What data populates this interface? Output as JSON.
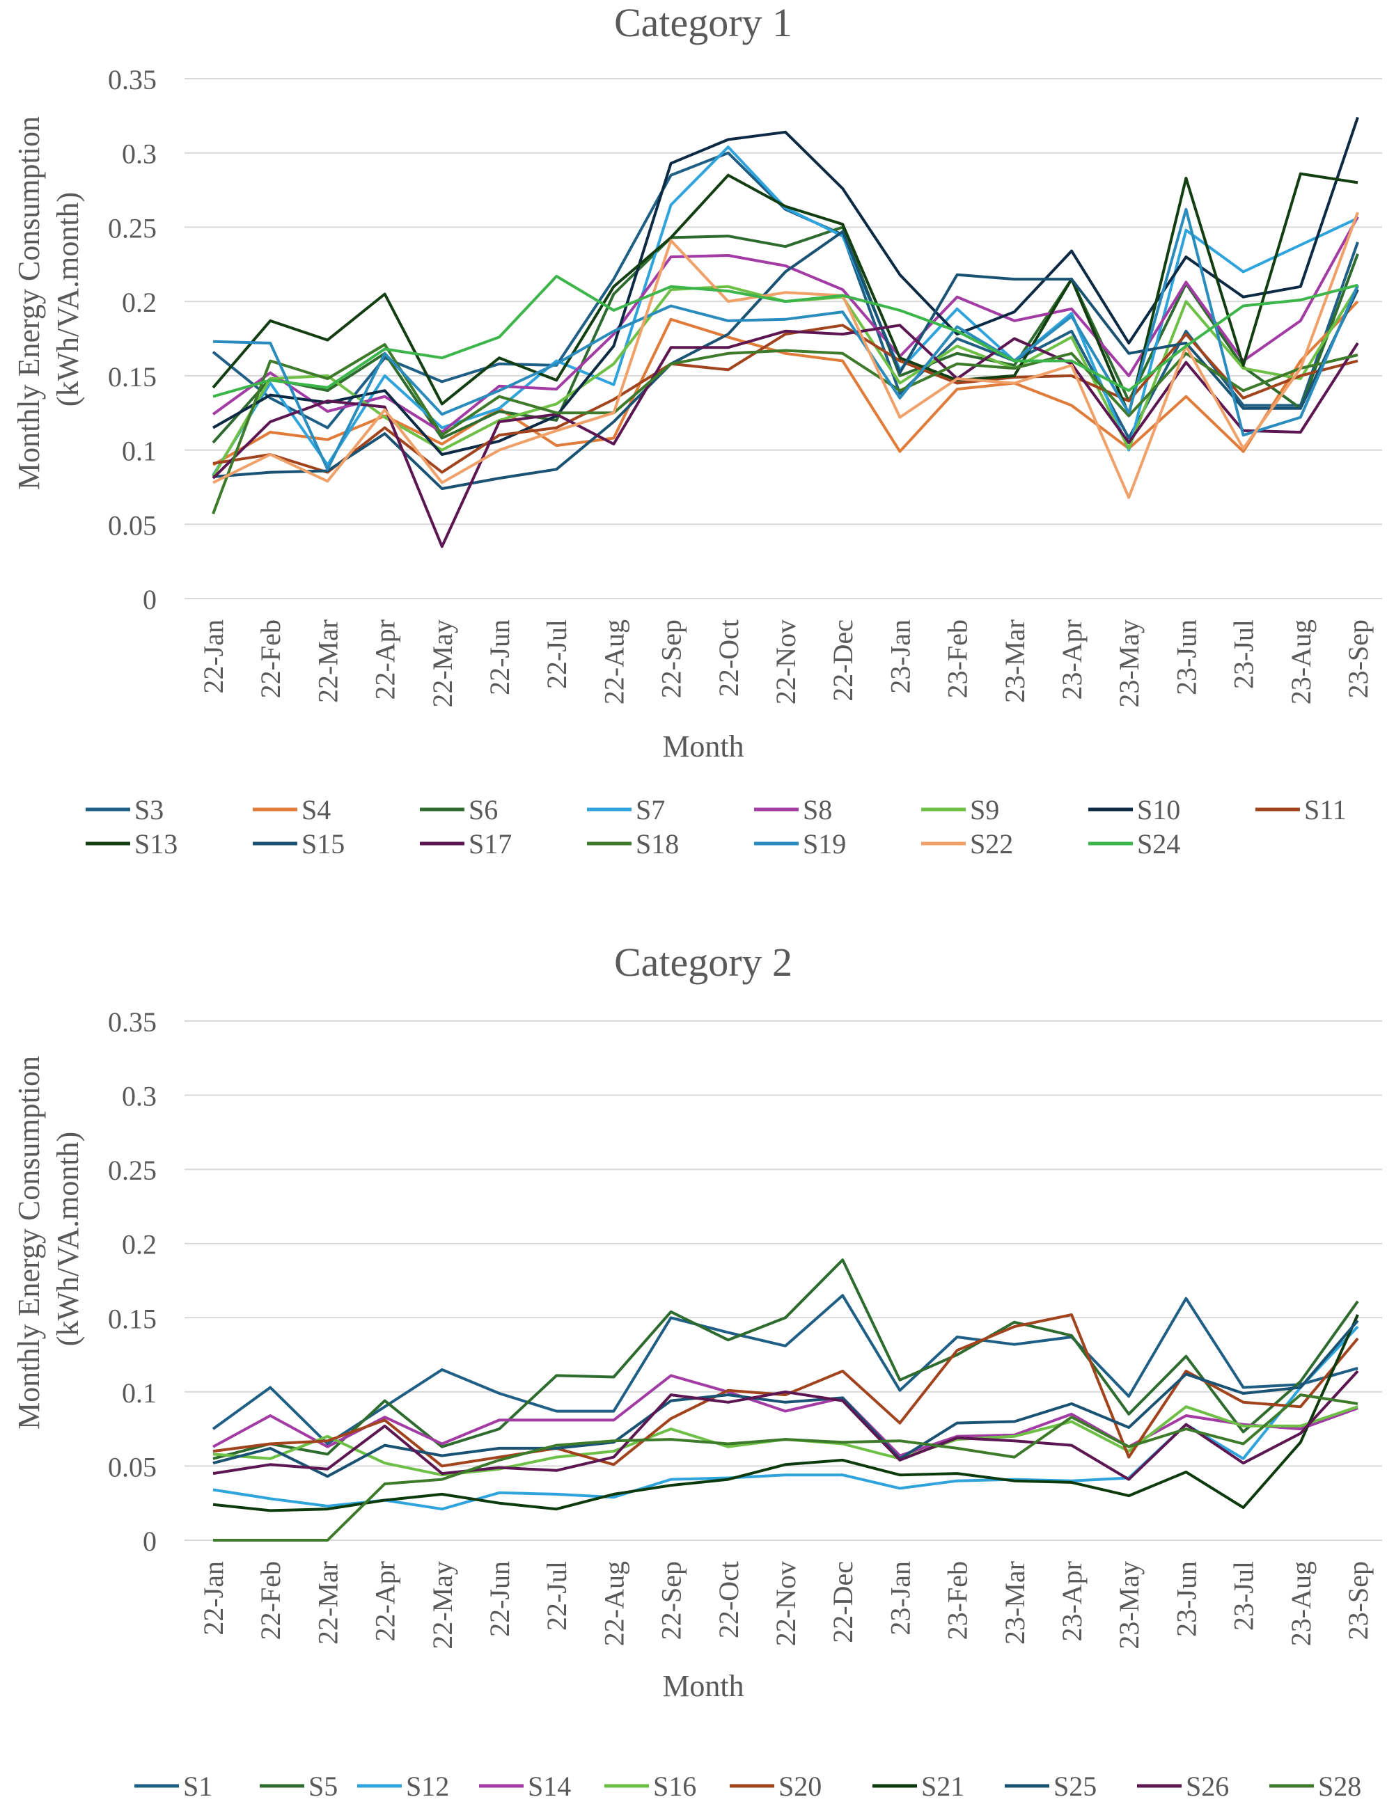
{
  "chart_data": [
    {
      "type": "line",
      "title": "Category 1",
      "xlabel": "Month",
      "ylabel": "Monthly Energy Consumption (kWh/VA.month)",
      "ylabel_lines": [
        "Monthly Energy Consumption",
        "(kWh/VA.month)"
      ],
      "ylim": [
        0,
        0.35
      ],
      "yticks": [
        0,
        0.05,
        0.1,
        0.15,
        0.2,
        0.25,
        0.3,
        0.35
      ],
      "ytick_labels": [
        "0",
        "0.05",
        "0.1",
        "0.15",
        "0.2",
        "0.25",
        "0.3",
        "0.35"
      ],
      "grid": true,
      "legend_position": "bottom",
      "categories": [
        "22-Jan",
        "22-Feb",
        "22-Mar",
        "22-Apr",
        "22-May",
        "22-Jun",
        "22-Jul",
        "22-Aug",
        "22-Sep",
        "22-Oct",
        "22-Nov",
        "22-Dec",
        "23-Jan",
        "23-Feb",
        "23-Mar",
        "23-Apr",
        "23-May",
        "23-Jun",
        "23-Jul",
        "23-Aug",
        "23-Sep"
      ],
      "series": [
        {
          "name": "S3",
          "color": "#1f5f86",
          "values": [
            0.166,
            0.135,
            0.115,
            0.162,
            0.146,
            0.158,
            0.157,
            0.215,
            0.285,
            0.3,
            0.262,
            0.245,
            0.138,
            0.175,
            0.16,
            0.18,
            0.108,
            0.18,
            0.13,
            0.13,
            0.24
          ]
        },
        {
          "name": "S4",
          "color": "#e07b39",
          "values": [
            0.09,
            0.112,
            0.107,
            0.123,
            0.104,
            0.128,
            0.103,
            0.108,
            0.188,
            0.176,
            0.165,
            0.16,
            0.099,
            0.141,
            0.145,
            0.13,
            0.101,
            0.136,
            0.099,
            0.16,
            0.2
          ]
        },
        {
          "name": "S6",
          "color": "#2e6b2e",
          "values": [
            0.105,
            0.148,
            0.14,
            0.165,
            0.108,
            0.126,
            0.12,
            0.205,
            0.243,
            0.244,
            0.237,
            0.25,
            0.15,
            0.165,
            0.157,
            0.215,
            0.133,
            0.212,
            0.156,
            0.128,
            0.232
          ]
        },
        {
          "name": "S7",
          "color": "#2ea3dc",
          "values": [
            0.083,
            0.145,
            0.09,
            0.15,
            0.115,
            0.128,
            0.16,
            0.144,
            0.265,
            0.304,
            0.263,
            0.244,
            0.154,
            0.195,
            0.16,
            0.192,
            0.1,
            0.248,
            0.22,
            0.238,
            0.256
          ]
        },
        {
          "name": "S8",
          "color": "#a23ba3",
          "values": [
            0.124,
            0.152,
            0.126,
            0.136,
            0.112,
            0.143,
            0.141,
            0.178,
            0.23,
            0.231,
            0.224,
            0.208,
            0.163,
            0.203,
            0.187,
            0.195,
            0.15,
            0.213,
            0.16,
            0.187,
            0.257
          ]
        },
        {
          "name": "S9",
          "color": "#6dbf46",
          "values": [
            0.082,
            0.148,
            0.15,
            0.122,
            0.1,
            0.12,
            0.131,
            0.158,
            0.208,
            0.21,
            0.2,
            0.203,
            0.145,
            0.17,
            0.155,
            0.176,
            0.101,
            0.2,
            0.155,
            0.148,
            0.21
          ]
        },
        {
          "name": "S10",
          "color": "#0d2a45",
          "values": [
            0.115,
            0.137,
            0.132,
            0.14,
            0.097,
            0.106,
            0.123,
            0.17,
            0.293,
            0.309,
            0.314,
            0.276,
            0.218,
            0.178,
            0.193,
            0.234,
            0.172,
            0.23,
            0.203,
            0.21,
            0.324
          ]
        },
        {
          "name": "S11",
          "color": "#a1441d",
          "values": [
            0.091,
            0.097,
            0.085,
            0.115,
            0.085,
            0.11,
            0.115,
            0.134,
            0.158,
            0.154,
            0.178,
            0.184,
            0.16,
            0.145,
            0.149,
            0.15,
            0.133,
            0.178,
            0.135,
            0.15,
            0.16
          ]
        },
        {
          "name": "S13",
          "color": "#123e12",
          "values": [
            0.142,
            0.187,
            0.174,
            0.205,
            0.131,
            0.162,
            0.147,
            0.21,
            0.243,
            0.285,
            0.264,
            0.252,
            0.162,
            0.147,
            0.15,
            0.215,
            0.124,
            0.283,
            0.157,
            0.286,
            0.28
          ]
        },
        {
          "name": "S15",
          "color": "#1a5273",
          "values": [
            0.082,
            0.085,
            0.086,
            0.111,
            0.074,
            0.081,
            0.087,
            0.119,
            0.158,
            0.178,
            0.22,
            0.247,
            0.152,
            0.218,
            0.215,
            0.215,
            0.165,
            0.172,
            0.128,
            0.128,
            0.208
          ]
        },
        {
          "name": "S17",
          "color": "#5c1651",
          "values": [
            0.081,
            0.119,
            0.133,
            0.129,
            0.035,
            0.119,
            0.124,
            0.104,
            0.169,
            0.169,
            0.18,
            0.178,
            0.184,
            0.148,
            0.175,
            0.158,
            0.105,
            0.159,
            0.113,
            0.112,
            0.172
          ]
        },
        {
          "name": "S18",
          "color": "#3d7a2a",
          "values": [
            0.057,
            0.16,
            0.148,
            0.171,
            0.11,
            0.136,
            0.125,
            0.125,
            0.158,
            0.165,
            0.167,
            0.165,
            0.14,
            0.158,
            0.155,
            0.165,
            0.123,
            0.165,
            0.14,
            0.155,
            0.164
          ]
        },
        {
          "name": "S19",
          "color": "#2a8cbc",
          "values": [
            0.173,
            0.172,
            0.087,
            0.165,
            0.124,
            0.14,
            0.158,
            0.18,
            0.197,
            0.187,
            0.188,
            0.193,
            0.135,
            0.183,
            0.16,
            0.19,
            0.125,
            0.262,
            0.11,
            0.122,
            0.211
          ]
        },
        {
          "name": "S22",
          "color": "#f0a069",
          "values": [
            0.078,
            0.097,
            0.079,
            0.127,
            0.078,
            0.1,
            0.113,
            0.125,
            0.241,
            0.2,
            0.206,
            0.204,
            0.122,
            0.148,
            0.145,
            0.157,
            0.068,
            0.17,
            0.101,
            0.155,
            0.26
          ]
        },
        {
          "name": "S24",
          "color": "#3cb54a",
          "values": [
            0.136,
            0.147,
            0.142,
            0.168,
            0.162,
            0.176,
            0.217,
            0.194,
            0.21,
            0.207,
            0.2,
            0.204,
            0.194,
            0.18,
            0.16,
            0.16,
            0.14,
            0.17,
            0.197,
            0.201,
            0.211
          ]
        }
      ]
    },
    {
      "type": "line",
      "title": "Category 2",
      "xlabel": "Month",
      "ylabel": "Monthly Energy Consumption (kWh/VA.month)",
      "ylabel_lines": [
        "Monthly Energy Consumption",
        "(kWh/VA.month)"
      ],
      "ylim": [
        0,
        0.35
      ],
      "yticks": [
        0,
        0.05,
        0.1,
        0.15,
        0.2,
        0.25,
        0.3,
        0.35
      ],
      "ytick_labels": [
        "0",
        "0.05",
        "0.1",
        "0.15",
        "0.2",
        "0.25",
        "0.3",
        "0.35"
      ],
      "grid": true,
      "legend_position": "bottom",
      "categories": [
        "22-Jan",
        "22-Feb",
        "22-Mar",
        "22-Apr",
        "22-May",
        "22-Jun",
        "22-Jul",
        "22-Aug",
        "22-Sep",
        "22-Oct",
        "22-Nov",
        "22-Dec",
        "23-Jan",
        "23-Feb",
        "23-Mar",
        "23-Apr",
        "23-May",
        "23-Jun",
        "23-Jul",
        "23-Aug",
        "23-Sep"
      ],
      "series": [
        {
          "name": "S1",
          "color": "#1f5f86",
          "values": [
            0.075,
            0.103,
            0.065,
            0.09,
            0.115,
            0.099,
            0.087,
            0.087,
            0.15,
            0.14,
            0.131,
            0.165,
            0.101,
            0.137,
            0.132,
            0.137,
            0.097,
            0.163,
            0.103,
            0.105,
            0.116
          ]
        },
        {
          "name": "S5",
          "color": "#2e6b2e",
          "values": [
            0.055,
            0.065,
            0.058,
            0.094,
            0.063,
            0.075,
            0.111,
            0.11,
            0.154,
            0.135,
            0.15,
            0.189,
            0.108,
            0.125,
            0.147,
            0.138,
            0.085,
            0.124,
            0.073,
            0.107,
            0.161
          ]
        },
        {
          "name": "S12",
          "color": "#2ea3dc",
          "values": [
            0.034,
            0.028,
            0.023,
            0.027,
            0.021,
            0.032,
            0.031,
            0.029,
            0.041,
            0.042,
            0.044,
            0.044,
            0.035,
            0.04,
            0.041,
            0.04,
            0.042,
            0.078,
            0.055,
            0.103,
            0.144
          ]
        },
        {
          "name": "S14",
          "color": "#a23ba3",
          "values": [
            0.063,
            0.084,
            0.063,
            0.083,
            0.065,
            0.081,
            0.081,
            0.081,
            0.111,
            0.1,
            0.087,
            0.096,
            0.057,
            0.07,
            0.071,
            0.085,
            0.063,
            0.084,
            0.078,
            0.075,
            0.089
          ]
        },
        {
          "name": "S16",
          "color": "#6dbf46",
          "values": [
            0.058,
            0.055,
            0.07,
            0.052,
            0.044,
            0.048,
            0.056,
            0.06,
            0.075,
            0.063,
            0.068,
            0.065,
            0.055,
            0.068,
            0.07,
            0.08,
            0.06,
            0.09,
            0.077,
            0.077,
            0.09
          ]
        },
        {
          "name": "S20",
          "color": "#a1441d",
          "values": [
            0.06,
            0.065,
            0.067,
            0.081,
            0.05,
            0.056,
            0.062,
            0.051,
            0.082,
            0.101,
            0.098,
            0.114,
            0.079,
            0.128,
            0.144,
            0.152,
            0.056,
            0.114,
            0.093,
            0.09,
            0.136
          ]
        },
        {
          "name": "S21",
          "color": "#0d3a0d",
          "values": [
            0.024,
            0.02,
            0.021,
            0.027,
            0.031,
            0.025,
            0.021,
            0.031,
            0.037,
            0.041,
            0.051,
            0.054,
            0.044,
            0.045,
            0.04,
            0.039,
            0.03,
            0.046,
            0.022,
            0.066,
            0.152
          ]
        },
        {
          "name": "S25",
          "color": "#1a5273",
          "values": [
            0.052,
            0.062,
            0.043,
            0.064,
            0.057,
            0.062,
            0.062,
            0.066,
            0.094,
            0.098,
            0.093,
            0.096,
            0.055,
            0.079,
            0.08,
            0.092,
            0.076,
            0.112,
            0.099,
            0.103,
            0.148
          ]
        },
        {
          "name": "S26",
          "color": "#5c1651",
          "values": [
            0.045,
            0.051,
            0.048,
            0.077,
            0.045,
            0.049,
            0.047,
            0.056,
            0.098,
            0.093,
            0.1,
            0.094,
            0.054,
            0.069,
            0.067,
            0.064,
            0.041,
            0.078,
            0.052,
            0.072,
            0.114
          ]
        },
        {
          "name": "S28",
          "color": "#3d7a2a",
          "values": [
            0.0,
            0.0,
            0.0,
            0.038,
            0.041,
            0.054,
            0.064,
            0.067,
            0.068,
            0.065,
            0.068,
            0.066,
            0.067,
            0.062,
            0.056,
            0.083,
            0.063,
            0.075,
            0.065,
            0.098,
            0.092
          ]
        }
      ]
    }
  ]
}
